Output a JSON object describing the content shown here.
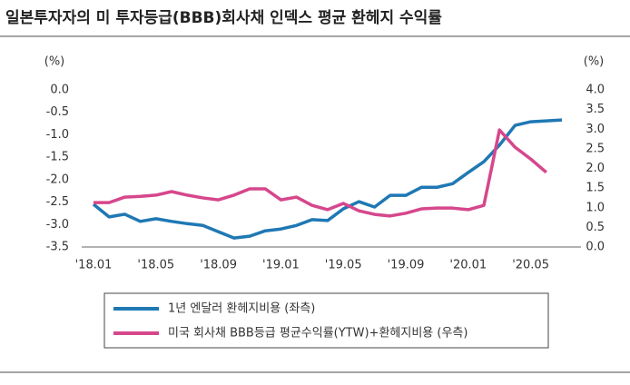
{
  "chart_data": {
    "type": "line",
    "title": "일본투자자의 미 투자등급(BBB)회사채 인덱스 평균 환헤지 수익률",
    "y_label": "(%)",
    "y2_label": "(%)",
    "categories": [
      "'18.01",
      null,
      null,
      null,
      "'18.05",
      null,
      null,
      null,
      "'18.09",
      null,
      null,
      null,
      "'19.01",
      null,
      null,
      null,
      "'19.05",
      null,
      null,
      null,
      "'19.09",
      null,
      null,
      null,
      "'20.01",
      null,
      null,
      null,
      "'20.05",
      null,
      null
    ],
    "ylim": [
      -3.5,
      0
    ],
    "yticks": [
      {
        "value": 0,
        "label": "0.0"
      },
      -0.5,
      {
        "value": -1,
        "label": "-1.0"
      },
      -1.5,
      {
        "value": -2,
        "label": "-2.0"
      },
      -2.5,
      {
        "value": -3,
        "label": "-3.0"
      },
      -3.5
    ],
    "y2lim": [
      0,
      4
    ],
    "y2ticks": [
      {
        "value": 0,
        "label": "0.0"
      },
      0.5,
      {
        "value": 1,
        "label": "1.0"
      },
      1.5,
      {
        "value": 2,
        "label": "2.0"
      },
      2.5,
      {
        "value": 3,
        "label": "3.0"
      },
      3.5,
      {
        "value": 4,
        "label": "4.0"
      }
    ],
    "series": [
      {
        "name": "1년 엔달러 환헤지비용 (좌측)",
        "color": "#1f78b4",
        "values": [
          -2.55,
          -2.83,
          -2.77,
          -2.93,
          -2.87,
          -2.93,
          -2.98,
          -3.02,
          -3.16,
          -3.3,
          -3.26,
          -3.14,
          -3.1,
          -3.02,
          -2.89,
          -2.91,
          -2.65,
          -2.49,
          -2.61,
          -2.35,
          -2.35,
          -2.17,
          -2.17,
          -2.09,
          -1.84,
          -1.6,
          -1.23,
          -0.79,
          -0.71,
          -0.69,
          -0.67
        ]
      },
      {
        "name": "미국 회사채 BBB등급 평균수익률(YTW)+환헤지비용 (우측)",
        "color": "#d6478c",
        "axis": "y2",
        "values": [
          1.13,
          1.13,
          1.27,
          1.29,
          1.32,
          1.41,
          1.32,
          1.25,
          1.2,
          1.32,
          1.48,
          1.48,
          1.2,
          1.27,
          1.06,
          0.95,
          1.11,
          0.92,
          0.83,
          0.79,
          0.86,
          0.97,
          0.99,
          0.99,
          0.95,
          1.06,
          2.98,
          2.54,
          2.24,
          1.9,
          null
        ]
      }
    ]
  }
}
